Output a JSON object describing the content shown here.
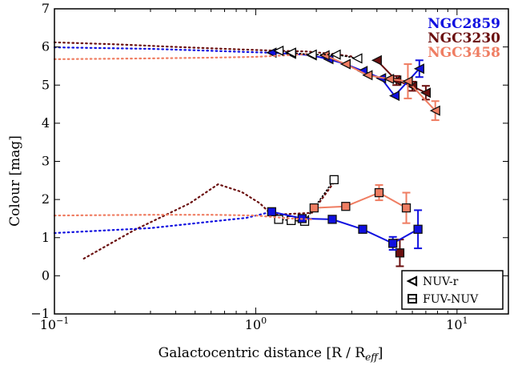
{
  "chart_data": {
    "type": "line",
    "xlabel_main": "Galactocentric distance [R / R",
    "xlabel_sub": "eff",
    "xlabel_close": "]",
    "ylabel": "Colour [mag]",
    "xscale": "log",
    "xlim": [
      0.1,
      18
    ],
    "ylim": [
      -1,
      7
    ],
    "y_ticks": [
      -1,
      0,
      1,
      2,
      3,
      4,
      5,
      6,
      7
    ],
    "x_ticks": [
      {
        "value": 0.1,
        "base": "10",
        "exp": "−1"
      },
      {
        "value": 1,
        "base": "10",
        "exp": "0"
      },
      {
        "value": 10,
        "base": "10",
        "exp": "1"
      }
    ],
    "galaxy_legend": {
      "placement": "top-right",
      "items": [
        {
          "name": "NGC2859",
          "color": "#1010e0"
        },
        {
          "name": "NGC3230",
          "color": "#6b0f0f"
        },
        {
          "name": "NGC3458",
          "color": "#ef7d62"
        }
      ]
    },
    "marker_legend": {
      "placement": "bottom-right",
      "items": [
        {
          "label": "NUV-r",
          "marker": "triangle-left"
        },
        {
          "label": "FUV-NUV",
          "marker": "square"
        }
      ]
    },
    "series": [
      {
        "name": "NGC3230",
        "band": "NUV-r",
        "style": "dotted",
        "color": "#6b0f0f",
        "x": [
          0.1,
          0.2,
          0.4,
          0.7,
          1.0,
          1.3
        ],
        "y": [
          6.12,
          6.07,
          6.0,
          5.95,
          5.92,
          5.9
        ]
      },
      {
        "name": "NGC3230",
        "band": "NUV-r",
        "style": "dotted",
        "color": "#6b0f0f",
        "x": [
          1.3,
          1.8,
          2.4,
          3.0
        ],
        "y": [
          5.9,
          5.88,
          5.82,
          5.75
        ]
      },
      {
        "name": "NGC3230",
        "band": "NUV-r",
        "style": "solid",
        "marker": "triangle-left",
        "color": "#6b0f0f",
        "x": [
          4.0,
          5.0,
          6.0,
          7.0
        ],
        "y": [
          5.65,
          5.12,
          4.97,
          4.8
        ],
        "err": [
          0,
          0.12,
          0.12,
          0.18
        ]
      },
      {
        "name": "NGC2859",
        "band": "NUV-r",
        "style": "dotted",
        "color": "#1010e0",
        "x": [
          0.1,
          0.3,
          0.6,
          1.0,
          1.2
        ],
        "y": [
          5.99,
          5.95,
          5.9,
          5.86,
          5.85
        ]
      },
      {
        "name": "NGC2859",
        "band": "NUV-r",
        "style": "solid",
        "marker": "triangle-left",
        "color": "#1010e0",
        "x": [
          1.2,
          1.5,
          1.9,
          2.3,
          2.8,
          3.4,
          4.2,
          4.9,
          6.5
        ],
        "y": [
          5.85,
          5.82,
          5.78,
          5.68,
          5.55,
          5.37,
          5.18,
          4.72,
          5.43
        ],
        "err": [
          0,
          0,
          0,
          0,
          0,
          0,
          0,
          0,
          0.22
        ]
      },
      {
        "name": "NGC3458",
        "band": "NUV-r",
        "style": "dotted",
        "color": "#ef7d62",
        "x": [
          0.1,
          0.3,
          0.6,
          1.0,
          1.4,
          1.9
        ],
        "y": [
          5.68,
          5.7,
          5.72,
          5.74,
          5.78,
          5.82
        ]
      },
      {
        "name": "NGC3458",
        "band": "NUV-r",
        "style": "solid",
        "marker": "triangle-left",
        "color": "#ef7d62",
        "x": [
          2.2,
          2.8,
          3.6,
          4.6,
          5.7,
          7.8
        ],
        "y": [
          5.78,
          5.55,
          5.26,
          5.16,
          5.1,
          4.33
        ],
        "err": [
          0,
          0,
          0,
          0,
          0.45,
          0.25
        ]
      },
      {
        "name": "NGC3230",
        "band": "NUV-r",
        "style": "open",
        "marker": "triangle-left",
        "color": "#000000",
        "x": [
          1.3,
          1.5,
          1.9,
          2.5,
          3.2
        ],
        "y": [
          5.9,
          5.85,
          5.8,
          5.8,
          5.7
        ]
      },
      {
        "name": "NGC3230",
        "band": "FUV-NUV",
        "style": "dotted",
        "color": "#6b0f0f",
        "x": [
          0.14,
          0.25,
          0.47,
          0.65,
          0.85,
          1.05,
          1.2
        ],
        "y": [
          0.45,
          1.2,
          1.9,
          2.4,
          2.2,
          1.9,
          1.6
        ]
      },
      {
        "name": "NGC3230",
        "band": "FUV-NUV",
        "style": "dotted",
        "color": "#6b0f0f",
        "x": [
          1.2,
          1.9,
          2.5
        ],
        "y": [
          1.6,
          1.65,
          2.52
        ]
      },
      {
        "name": "NGC3230",
        "band": "FUV-NUV",
        "style": "open",
        "marker": "square",
        "color": "#000000",
        "x": [
          1.3,
          1.5,
          1.75,
          2.45
        ],
        "y": [
          1.48,
          1.45,
          1.43,
          2.52
        ]
      },
      {
        "name": "NGC3230",
        "band": "FUV-NUV",
        "style": "marker-only",
        "marker": "square",
        "color": "#6b0f0f",
        "x": [
          5.2
        ],
        "y": [
          0.6
        ],
        "err": [
          0.35
        ]
      },
      {
        "name": "NGC2859",
        "band": "FUV-NUV",
        "style": "dotted",
        "color": "#1010e0",
        "x": [
          0.1,
          0.3,
          0.6,
          0.9,
          1.2
        ],
        "y": [
          1.12,
          1.25,
          1.42,
          1.52,
          1.68
        ]
      },
      {
        "name": "NGC2859",
        "band": "FUV-NUV",
        "style": "solid",
        "marker": "square",
        "color": "#1010e0",
        "x": [
          1.2,
          1.7,
          2.4,
          3.4,
          4.8,
          6.4
        ],
        "y": [
          1.68,
          1.5,
          1.48,
          1.22,
          0.85,
          1.22
        ],
        "err": [
          0,
          0,
          0,
          0,
          0.17,
          0.5
        ]
      },
      {
        "name": "NGC3458",
        "band": "FUV-NUV",
        "style": "dotted",
        "color": "#ef7d62",
        "x": [
          0.1,
          0.3,
          0.6,
          1.0,
          1.5,
          1.9
        ],
        "y": [
          1.58,
          1.6,
          1.6,
          1.58,
          1.5,
          1.48
        ]
      },
      {
        "name": "NGC3458",
        "band": "FUV-NUV",
        "style": "solid",
        "marker": "square",
        "color": "#ef7d62",
        "x": [
          1.95,
          2.8,
          4.1,
          5.6
        ],
        "y": [
          1.78,
          1.82,
          2.18,
          1.78
        ],
        "err": [
          0,
          0,
          0.2,
          0.4
        ]
      }
    ]
  }
}
